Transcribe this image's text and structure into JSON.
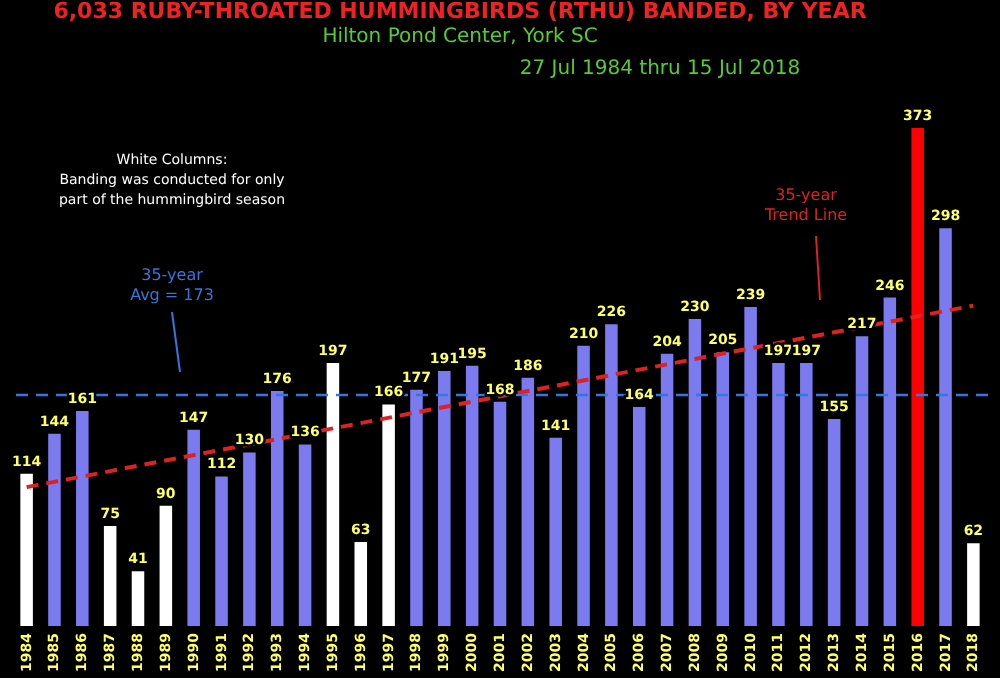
{
  "chart_data": {
    "type": "bar",
    "title": "6,033 RUBY-THROATED HUMMINGBIRDS (RTHU) BANDED, BY YEAR",
    "subtitle": "Hilton Pond Center, York SC",
    "annotations": [
      "27 Jul 1984 thru 15 Jul 2018",
      "White Columns:\nBanding was conducted for only\npart of the hummingbird season"
    ],
    "categories": [
      "1984",
      "1985",
      "1986",
      "1987",
      "1988",
      "1989",
      "1990",
      "1991",
      "1992",
      "1993",
      "1994",
      "1995",
      "1996",
      "1997",
      "1998",
      "1999",
      "2000",
      "2001",
      "2002",
      "2003",
      "2004",
      "2005",
      "2006",
      "2007",
      "2008",
      "2009",
      "2010",
      "2011",
      "2012",
      "2013",
      "2014",
      "2015",
      "2016",
      "2017",
      "2018"
    ],
    "series": [
      {
        "values": [
          114,
          144,
          161,
          75,
          41,
          90,
          147,
          112,
          130,
          176,
          136,
          197,
          63,
          166,
          177,
          191,
          195,
          168,
          186,
          141,
          210,
          226,
          164,
          204,
          230,
          205,
          239,
          197,
          197,
          155,
          217,
          246,
          373,
          298,
          62
        ],
        "value_labels": [
          "114",
          "144",
          "161",
          "75",
          "41",
          "90",
          "147",
          "112",
          "130",
          "176",
          "136",
          "197",
          "63",
          "166",
          "177",
          "191",
          "195",
          "168",
          "186",
          "141",
          "210",
          "226",
          "164",
          "204",
          "230",
          "205",
          "239",
          "197",
          "197",
          "155",
          "217",
          "246",
          "373",
          "298",
          "62"
        ],
        "colors": [
          "#ffffff",
          "#7b7bef",
          "#7b7bef",
          "#ffffff",
          "#ffffff",
          "#ffffff",
          "#7b7bef",
          "#7b7bef",
          "#7b7bef",
          "#7b7bef",
          "#7b7bef",
          "#ffffff",
          "#ffffff",
          "#ffffff",
          "#7b7bef",
          "#7b7bef",
          "#7b7bef",
          "#7b7bef",
          "#7b7bef",
          "#7b7bef",
          "#7b7bef",
          "#7b7bef",
          "#7b7bef",
          "#7b7bef",
          "#7b7bef",
          "#7b7bef",
          "#7b7bef",
          "#7b7bef",
          "#7b7bef",
          "#7b7bef",
          "#7b7bef",
          "#7b7bef",
          "#ff0000",
          "#7b7bef",
          "#ffffff"
        ]
      },
      {
        "type": "line",
        "name": "35-year\nTrend Line",
        "values": [
          104,
          null,
          null,
          null,
          null,
          null,
          null,
          null,
          null,
          null,
          null,
          null,
          null,
          null,
          null,
          null,
          null,
          null,
          null,
          null,
          null,
          null,
          null,
          null,
          null,
          null,
          null,
          null,
          null,
          null,
          null,
          null,
          null,
          null,
          240
        ],
        "color": "#dd2222",
        "line_style": "dashed"
      }
    ],
    "tick_labels": "x",
    "ref_lines": [
      {
        "axis": "y",
        "value": 173,
        "label": "35-year\nAvg = 173",
        "color": "#3377dd",
        "line_style": "dashed"
      }
    ]
  }
}
